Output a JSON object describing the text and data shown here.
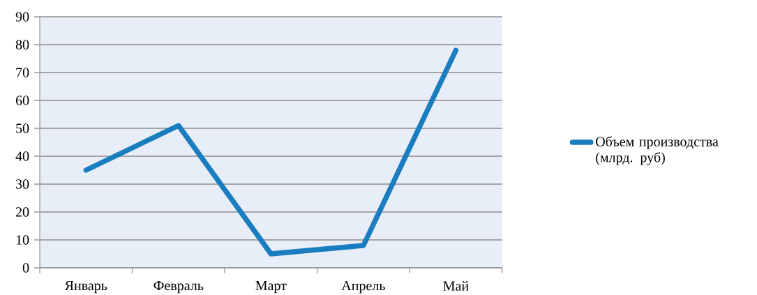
{
  "chart_data": {
    "type": "line",
    "categories": [
      "Январь",
      "Февраль",
      "Март",
      "Апрель",
      "Май"
    ],
    "series": [
      {
        "name": "Объем производства (млрд. руб)",
        "color": "#1a7dc0",
        "values": [
          35,
          51,
          5,
          8,
          78
        ]
      }
    ],
    "ylim": [
      0,
      90
    ],
    "yticks": [
      0,
      10,
      20,
      30,
      40,
      50,
      60,
      70,
      80,
      90
    ],
    "grid": "y",
    "legend": "right",
    "marker": "none",
    "line_style": "solid"
  }
}
